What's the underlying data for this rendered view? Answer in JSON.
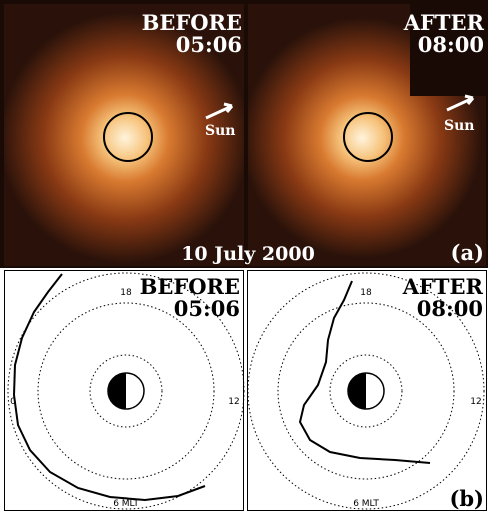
{
  "panel_a": {
    "left": {
      "label": "BEFORE",
      "time": "05:06",
      "sun": "Sun"
    },
    "right": {
      "label": "AFTER",
      "time": "08:00",
      "sun": "Sun"
    },
    "date": "10 July 2000",
    "tag": "(a)"
  },
  "panel_b": {
    "left": {
      "label": "BEFORE",
      "time": "05:06",
      "mlt_labels": [
        "18",
        "12",
        "0",
        "6 MLT"
      ]
    },
    "right": {
      "label": "AFTER",
      "time": "08:00",
      "mlt_labels": [
        "18",
        "12",
        "6 MLT"
      ]
    },
    "tag": "(b)"
  }
}
